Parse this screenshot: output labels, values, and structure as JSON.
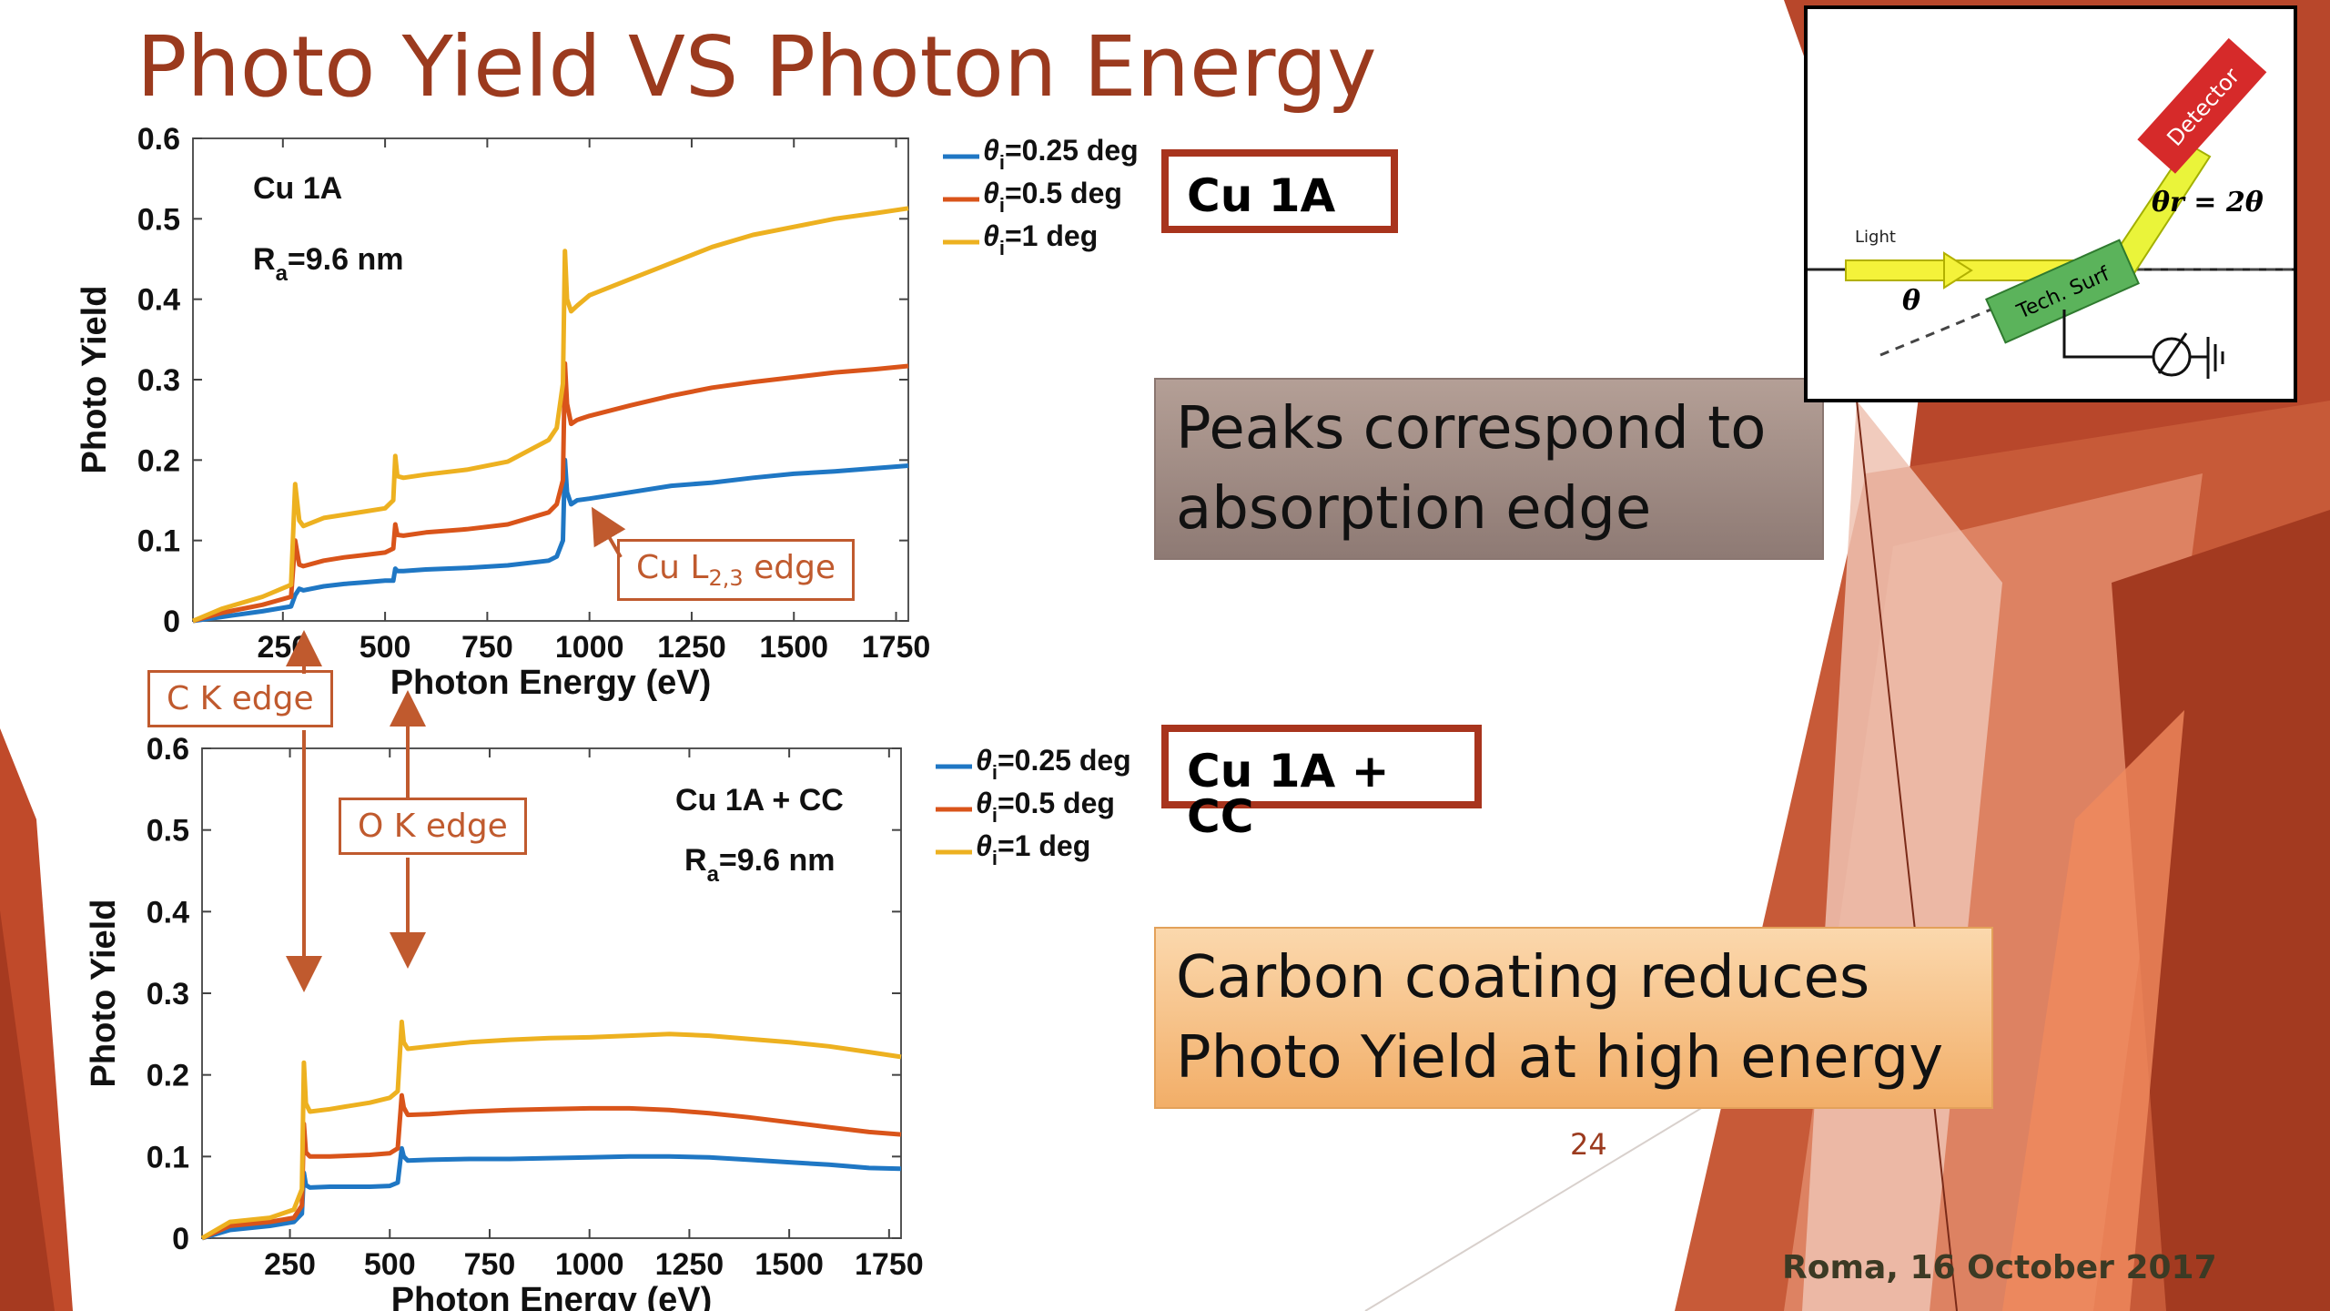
{
  "slide": {
    "title": "Photo Yield VS Photon Energy",
    "page_number": "24",
    "footer": "Roma, 16 October 2017"
  },
  "labels": {
    "top_box": "Cu 1A",
    "bottom_box": "Cu 1A + CC",
    "callout_peaks": "Peaks correspond to absorption edge",
    "callout_carbon": "Carbon coating reduces Photo Yield at high energy",
    "c_k_edge": "C K edge",
    "o_k_edge": "O K edge",
    "cu_l_edge": "Cu L",
    "cu_l_edge_sub": "2,3",
    "cu_l_edge_suffix": " edge"
  },
  "inset_diagram": {
    "detector": "Detector",
    "light": "Light",
    "theta": "θ",
    "theta_r": "θr = 2θ",
    "tech_surf": "Tech. Surf"
  },
  "colors": {
    "blue": "#1f77c4",
    "orange": "#d9541a",
    "yellow": "#edb120",
    "title": "#9b3a1e",
    "accent_border": "#a8341d",
    "edge_label": "#c05a2e"
  },
  "chart_data": [
    {
      "type": "line",
      "sample_label": "Cu 1A",
      "roughness_label": "R",
      "roughness_sub": "a",
      "roughness_value": "=9.6 nm",
      "xlabel": "Photon Energy (eV)",
      "ylabel": "Photo Yield",
      "xlim": [
        30,
        1780
      ],
      "ylim": [
        0,
        0.6
      ],
      "xticks": [
        250,
        500,
        750,
        1000,
        1250,
        1500,
        1750
      ],
      "yticks": [
        0,
        0.1,
        0.2,
        0.3,
        0.4,
        0.5,
        0.6
      ],
      "ytick_labels": [
        "0",
        "0.1",
        "0.2",
        "0.3",
        "0.4",
        "0.5",
        "0.6"
      ],
      "grid": false,
      "legend_position": "outside-top-right",
      "series": [
        {
          "name": "θi=0.25 deg",
          "legend_symbol": "θ",
          "legend_sub": "i",
          "legend_text": "=0.25 deg",
          "color": "#1f77c4",
          "x": [
            30,
            100,
            200,
            270,
            280,
            290,
            300,
            350,
            400,
            450,
            500,
            520,
            525,
            530,
            545,
            600,
            700,
            800,
            900,
            920,
            935,
            940,
            945,
            955,
            970,
            1000,
            1100,
            1200,
            1300,
            1400,
            1500,
            1600,
            1700,
            1780
          ],
          "y": [
            0,
            0.005,
            0.012,
            0.018,
            0.032,
            0.04,
            0.038,
            0.043,
            0.046,
            0.048,
            0.05,
            0.05,
            0.065,
            0.062,
            0.062,
            0.064,
            0.066,
            0.069,
            0.075,
            0.08,
            0.1,
            0.2,
            0.16,
            0.145,
            0.15,
            0.152,
            0.16,
            0.168,
            0.172,
            0.178,
            0.183,
            0.186,
            0.19,
            0.193
          ]
        },
        {
          "name": "θi=0.5 deg",
          "legend_symbol": "θ",
          "legend_sub": "i",
          "legend_text": "=0.5 deg",
          "color": "#d9541a",
          "x": [
            30,
            100,
            200,
            270,
            280,
            290,
            300,
            350,
            400,
            450,
            500,
            520,
            525,
            530,
            545,
            600,
            700,
            800,
            900,
            920,
            935,
            940,
            945,
            955,
            970,
            1000,
            1100,
            1200,
            1300,
            1400,
            1500,
            1600,
            1700,
            1780
          ],
          "y": [
            0,
            0.01,
            0.02,
            0.03,
            0.1,
            0.07,
            0.068,
            0.075,
            0.079,
            0.082,
            0.085,
            0.09,
            0.12,
            0.107,
            0.106,
            0.11,
            0.114,
            0.12,
            0.135,
            0.145,
            0.175,
            0.32,
            0.27,
            0.245,
            0.25,
            0.255,
            0.268,
            0.28,
            0.29,
            0.297,
            0.303,
            0.309,
            0.313,
            0.317
          ]
        },
        {
          "name": "θi=1 deg",
          "legend_symbol": "θ",
          "legend_sub": "i",
          "legend_text": "=1 deg",
          "color": "#edb120",
          "x": [
            30,
            100,
            200,
            270,
            280,
            290,
            300,
            350,
            400,
            450,
            500,
            520,
            525,
            530,
            545,
            600,
            700,
            800,
            900,
            920,
            935,
            940,
            945,
            955,
            970,
            1000,
            1100,
            1200,
            1300,
            1400,
            1500,
            1600,
            1700,
            1780
          ],
          "y": [
            0,
            0.015,
            0.03,
            0.045,
            0.17,
            0.125,
            0.118,
            0.128,
            0.132,
            0.136,
            0.14,
            0.15,
            0.205,
            0.18,
            0.178,
            0.182,
            0.188,
            0.198,
            0.225,
            0.24,
            0.295,
            0.46,
            0.4,
            0.385,
            0.392,
            0.405,
            0.425,
            0.445,
            0.465,
            0.48,
            0.49,
            0.5,
            0.507,
            0.513
          ]
        }
      ]
    },
    {
      "type": "line",
      "sample_label": "Cu 1A + CC",
      "roughness_label": "R",
      "roughness_sub": "a",
      "roughness_value": "=9.6 nm",
      "xlabel": "Photon Energy (eV)",
      "ylabel": "Photo Yield",
      "xlim": [
        30,
        1780
      ],
      "ylim": [
        0,
        0.6
      ],
      "xticks": [
        250,
        500,
        750,
        1000,
        1250,
        1500,
        1750
      ],
      "yticks": [
        0,
        0.1,
        0.2,
        0.3,
        0.4,
        0.5,
        0.6
      ],
      "ytick_labels": [
        "0",
        "0.1",
        "0.2",
        "0.3",
        "0.4",
        "0.5",
        "0.6"
      ],
      "grid": false,
      "legend_position": "outside-top-right",
      "series": [
        {
          "name": "θi=0.25 deg",
          "legend_symbol": "θ",
          "legend_sub": "i",
          "legend_text": "=0.25 deg",
          "color": "#1f77c4",
          "x": [
            30,
            100,
            200,
            260,
            280,
            285,
            290,
            300,
            350,
            400,
            450,
            500,
            520,
            530,
            535,
            545,
            600,
            700,
            800,
            900,
            1000,
            1100,
            1200,
            1300,
            1400,
            1500,
            1600,
            1700,
            1780
          ],
          "y": [
            0,
            0.01,
            0.015,
            0.02,
            0.03,
            0.08,
            0.065,
            0.062,
            0.063,
            0.063,
            0.063,
            0.064,
            0.068,
            0.11,
            0.1,
            0.095,
            0.096,
            0.097,
            0.097,
            0.098,
            0.099,
            0.1,
            0.1,
            0.099,
            0.096,
            0.093,
            0.09,
            0.086,
            0.085
          ]
        },
        {
          "name": "θi=0.5 deg",
          "legend_symbol": "θ",
          "legend_sub": "i",
          "legend_text": "=0.5 deg",
          "color": "#d9541a",
          "x": [
            30,
            100,
            200,
            260,
            280,
            285,
            290,
            300,
            350,
            400,
            450,
            500,
            520,
            530,
            535,
            545,
            600,
            700,
            800,
            900,
            1000,
            1100,
            1200,
            1300,
            1400,
            1500,
            1600,
            1700,
            1780
          ],
          "y": [
            0,
            0.015,
            0.02,
            0.025,
            0.04,
            0.14,
            0.105,
            0.1,
            0.1,
            0.101,
            0.102,
            0.104,
            0.11,
            0.175,
            0.16,
            0.151,
            0.152,
            0.155,
            0.157,
            0.158,
            0.159,
            0.159,
            0.157,
            0.153,
            0.148,
            0.142,
            0.136,
            0.13,
            0.127
          ]
        },
        {
          "name": "θi=1 deg",
          "legend_symbol": "θ",
          "legend_sub": "i",
          "legend_text": "=1 deg",
          "color": "#edb120",
          "x": [
            30,
            100,
            200,
            260,
            280,
            285,
            290,
            300,
            350,
            400,
            450,
            500,
            520,
            530,
            535,
            545,
            600,
            700,
            800,
            900,
            1000,
            1100,
            1200,
            1300,
            1400,
            1500,
            1600,
            1700,
            1780
          ],
          "y": [
            0,
            0.02,
            0.025,
            0.035,
            0.06,
            0.215,
            0.165,
            0.155,
            0.158,
            0.162,
            0.166,
            0.172,
            0.18,
            0.265,
            0.24,
            0.232,
            0.235,
            0.24,
            0.243,
            0.245,
            0.246,
            0.248,
            0.25,
            0.248,
            0.244,
            0.24,
            0.235,
            0.228,
            0.222
          ]
        }
      ]
    }
  ]
}
